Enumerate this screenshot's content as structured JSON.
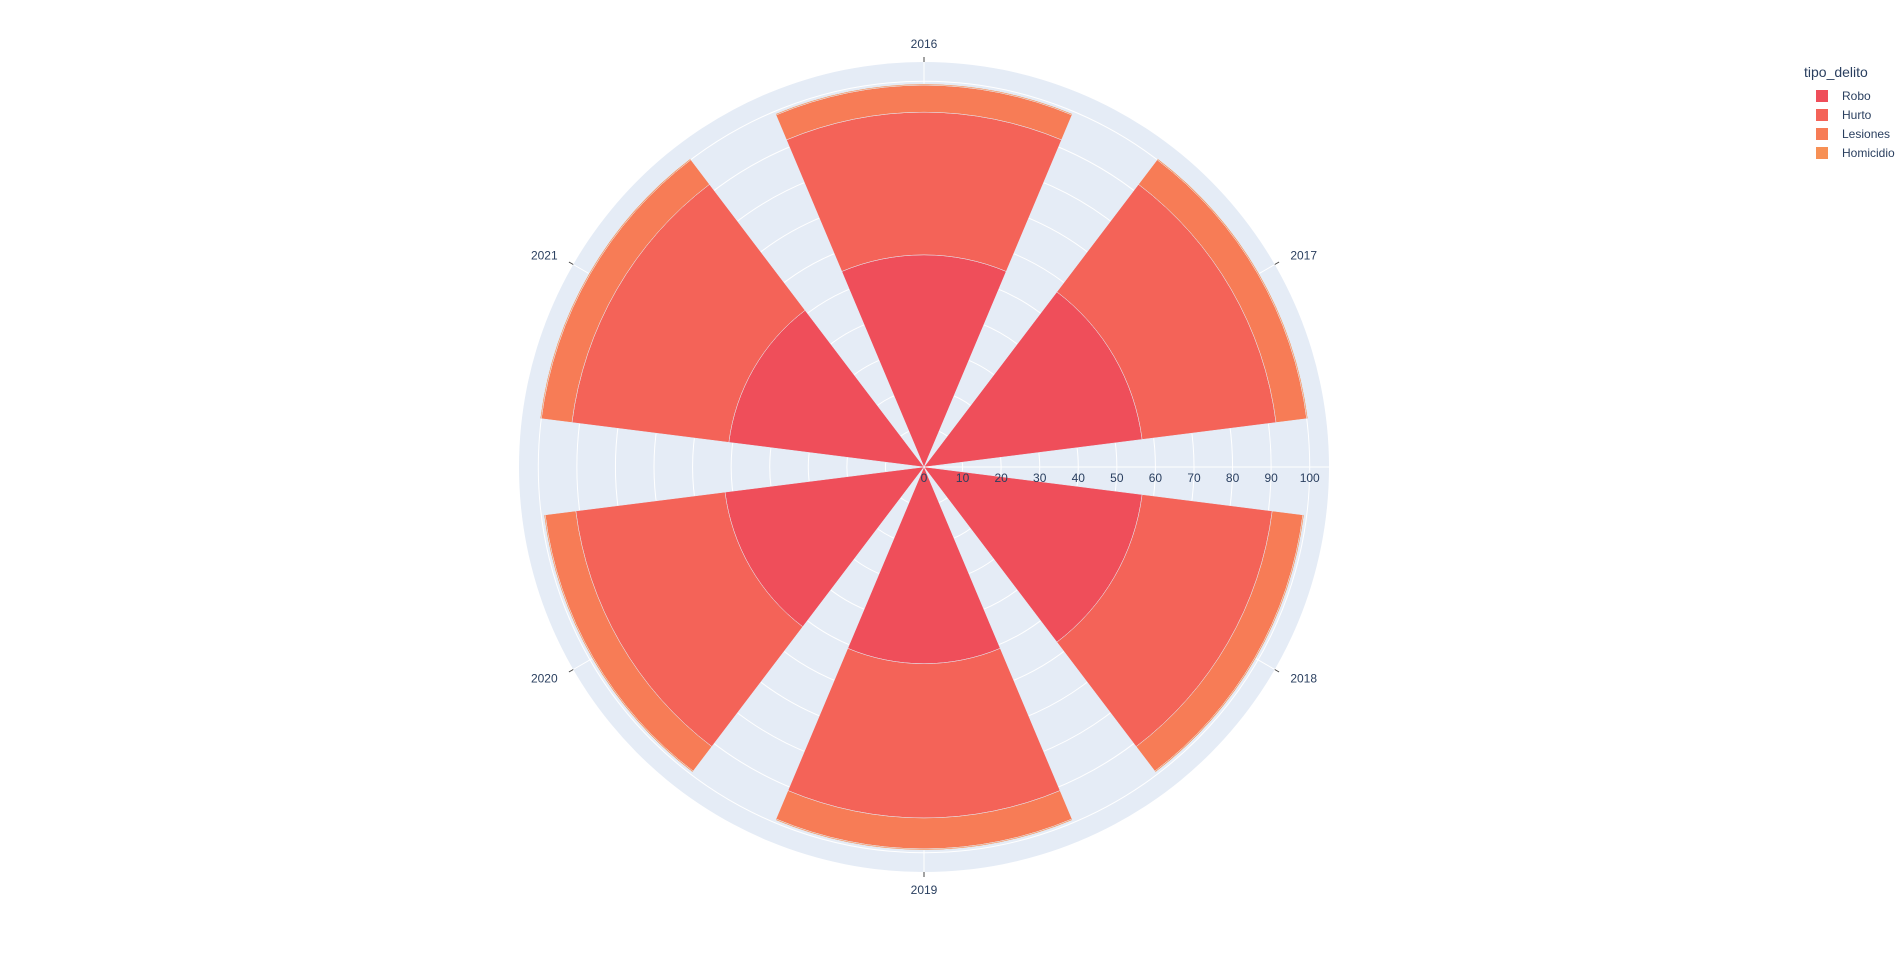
{
  "chart_data": {
    "type": "barpolar",
    "categories": [
      "2016",
      "2017",
      "2018",
      "2019",
      "2020",
      "2021"
    ],
    "series": [
      {
        "name": "Robo",
        "values": [
          55,
          57,
          57,
          51,
          52,
          51
        ],
        "color": "#ef4e5a"
      },
      {
        "name": "Hurto",
        "values": [
          37,
          35,
          34,
          40,
          39,
          41
        ],
        "color": "#f46358"
      },
      {
        "name": "Lesiones",
        "values": [
          7,
          8,
          8,
          8,
          8,
          8
        ],
        "color": "#f77c56"
      },
      {
        "name": "Homicidio",
        "values": [
          0.3,
          0.3,
          0.3,
          0.3,
          0.3,
          0.3
        ],
        "color": "#f79055"
      }
    ],
    "radial_ticks": [
      "0",
      "10",
      "20",
      "30",
      "40",
      "50",
      "60",
      "70",
      "80",
      "90",
      "100"
    ],
    "radial_range": [
      0,
      105
    ],
    "direction": "clockwise",
    "rotation": "top",
    "background_color": "#e5ecf6",
    "legend_position": "top-right"
  },
  "legend": {
    "title": "tipo_delito",
    "items": [
      "Robo",
      "Hurto",
      "Lesiones",
      "Homicidio"
    ]
  }
}
